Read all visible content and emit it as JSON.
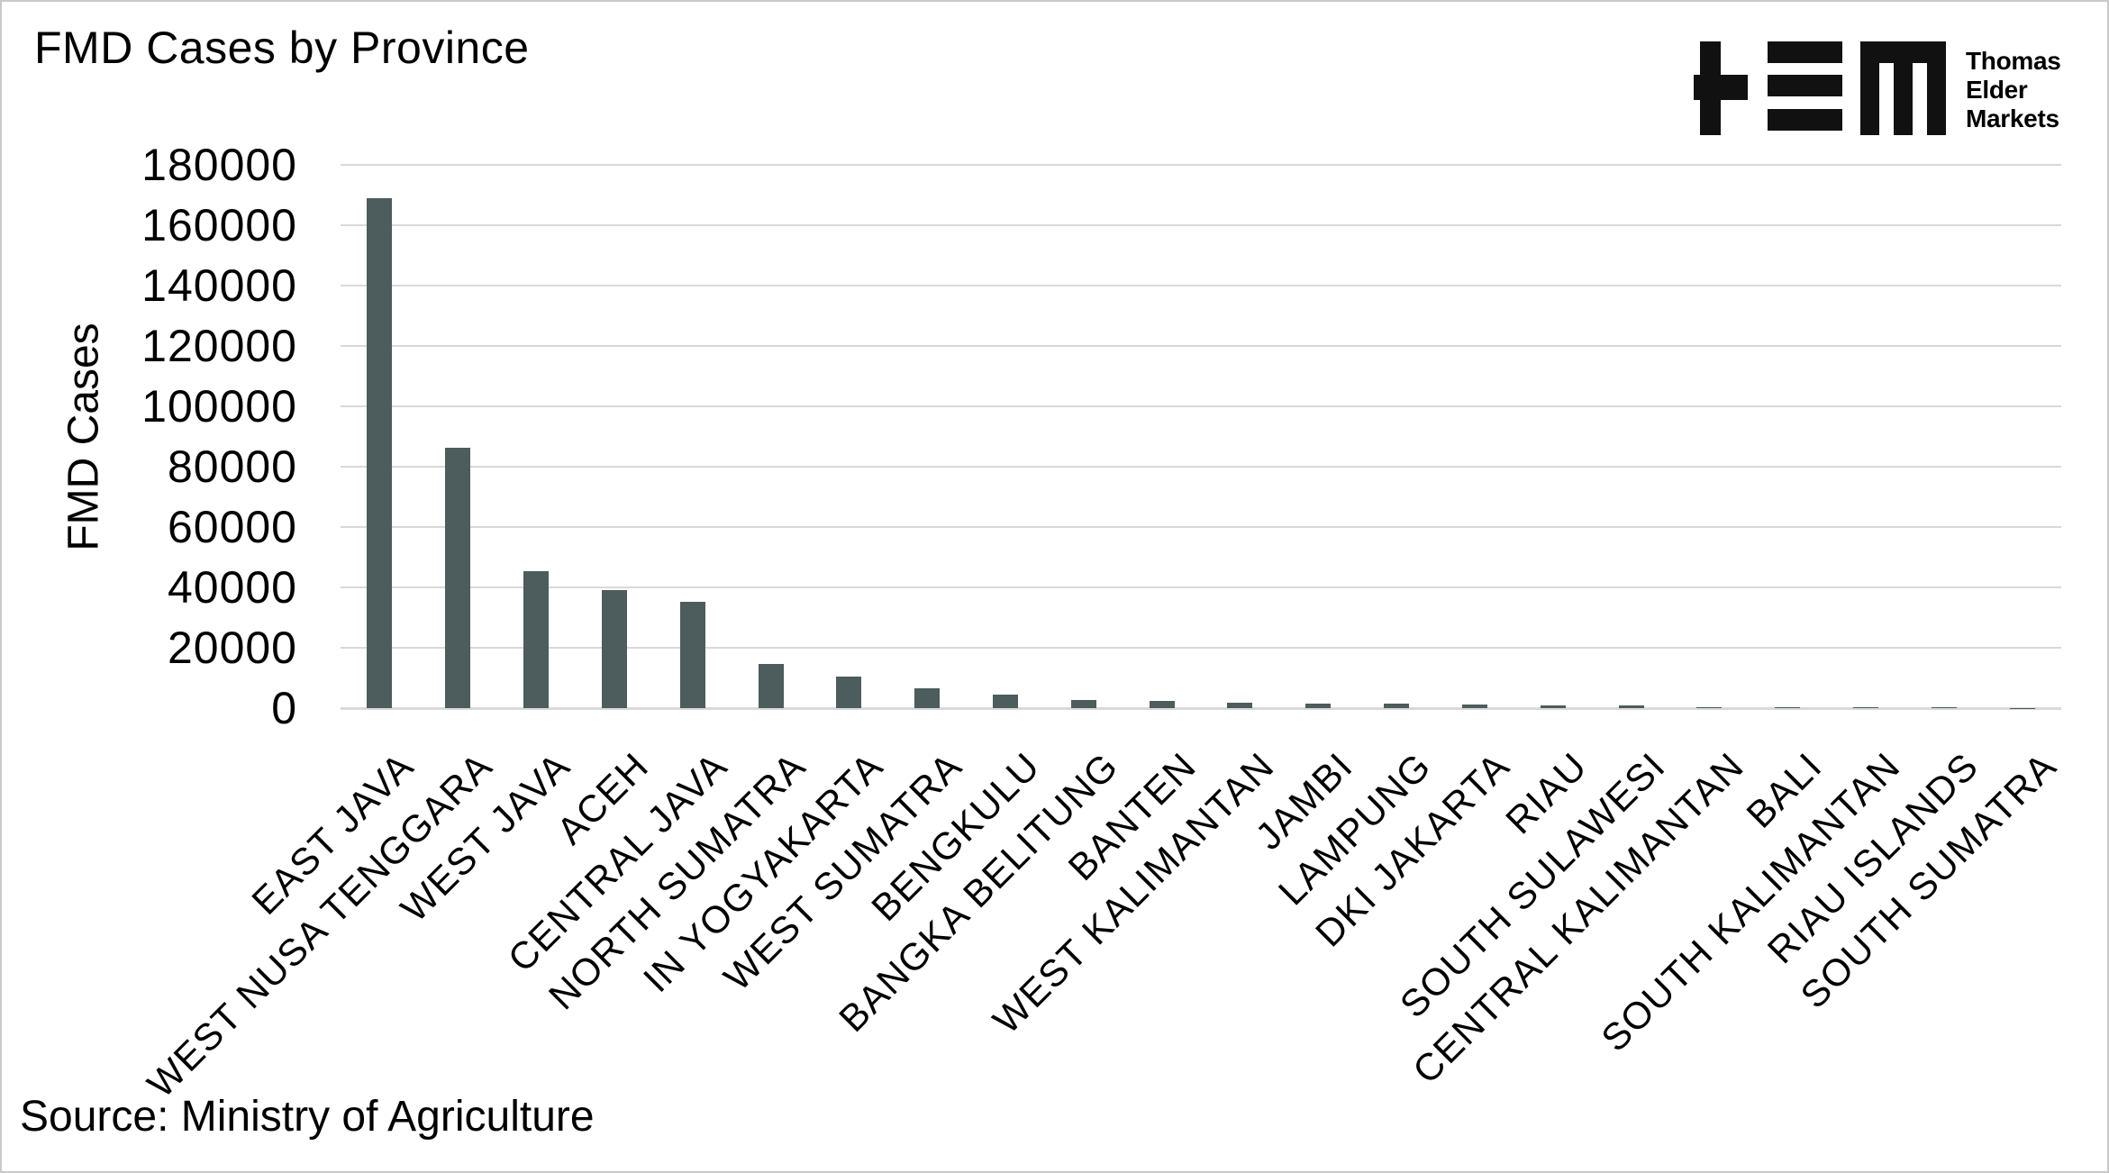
{
  "title": "FMD Cases by Province",
  "source": "Source: Ministry of Agriculture",
  "logo": {
    "name": "Thomas Elder Markets",
    "lines": [
      "Thomas",
      "Elder",
      "Markets"
    ]
  },
  "colors": {
    "bar": "#4D5C5C",
    "gridline": "#D9D9D9",
    "text": "#000000",
    "background": "#FFFFFF",
    "border": "#C9C9C9",
    "logo": "#111111"
  },
  "chart_data": {
    "type": "bar",
    "title": "FMD Cases by Province",
    "xlabel": "",
    "ylabel": "FMD Cases",
    "ylim": [
      0,
      180000
    ],
    "yticks": [
      0,
      20000,
      40000,
      60000,
      80000,
      100000,
      120000,
      140000,
      160000,
      180000
    ],
    "grid": "horizontal",
    "legend": "none",
    "xlabel_rotation": 45,
    "categories": [
      "EAST JAVA",
      "WEST NUSA TENGGARA",
      "WEST JAVA",
      "ACEH",
      "CENTRAL JAVA",
      "NORTH SUMATRA",
      "IN YOGYAKARTA",
      "WEST SUMATRA",
      "BENGKULU",
      "BANGKA BELITUNG",
      "BANTEN",
      "WEST KALIMANTAN",
      "JAMBI",
      "LAMPUNG",
      "DKI JAKARTA",
      "RIAU",
      "SOUTH SULAWESI",
      "CENTRAL KALIMANTAN",
      "BALI",
      "SOUTH KALIMANTAN",
      "RIAU ISLANDS",
      "SOUTH SUMATRA"
    ],
    "values": [
      169000,
      86300,
      45500,
      39000,
      35300,
      14700,
      10300,
      6700,
      4600,
      2800,
      2300,
      1700,
      1500,
      1350,
      1200,
      1000,
      850,
      280,
      230,
      190,
      150,
      120
    ]
  }
}
